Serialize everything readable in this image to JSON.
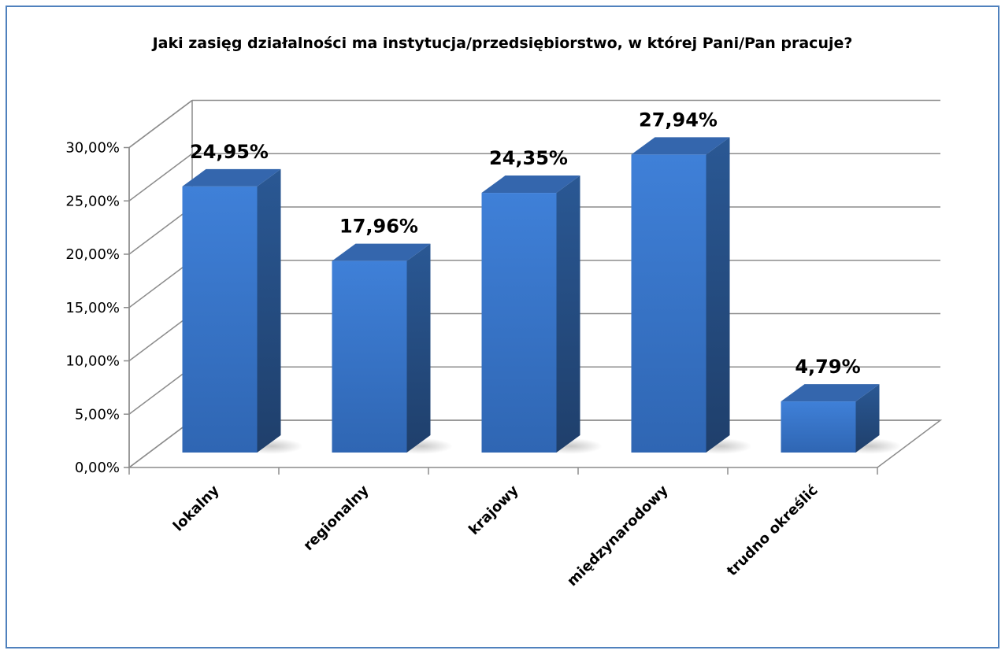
{
  "chart_data": {
    "type": "bar",
    "title": "Jaki zasięg działalności ma instytucja/przedsiębiorstwo, w której Pani/Pan pracuje?",
    "categories": [
      "lokalny",
      "regionalny",
      "krajowy",
      "międzynarodowy",
      "trudno określić"
    ],
    "values": [
      24.95,
      17.96,
      24.35,
      27.94,
      4.79
    ],
    "value_labels": [
      "24,95%",
      "17,96%",
      "24,35%",
      "27,94%",
      "4,79%"
    ],
    "y_ticks": [
      0,
      5,
      10,
      15,
      20,
      25,
      30
    ],
    "y_tick_labels": [
      "0,00%",
      "5,00%",
      "10,00%",
      "15,00%",
      "20,00%",
      "25,00%",
      "30,00%"
    ],
    "ylim": [
      0,
      30
    ],
    "xlabel": "",
    "ylabel": "",
    "grid": true,
    "legend": "none",
    "style": "3d-column",
    "colors": {
      "bar_front": "#3d7dd4",
      "bar_side": "#244d80",
      "bar_top": "#3466ad",
      "frame_border": "#4f81bd",
      "grid": "#8c8c8c"
    }
  }
}
